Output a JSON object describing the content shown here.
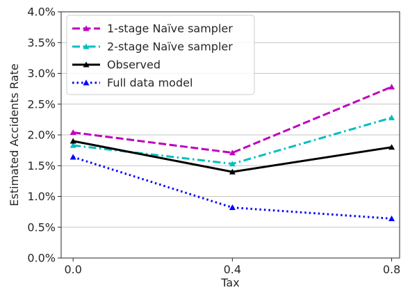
{
  "chart_data": {
    "type": "line",
    "xlabel": "Tax",
    "ylabel": "Estimated Accidents Rate",
    "x": [
      0.0,
      0.4,
      0.8
    ],
    "x_tick_labels": [
      "0.0",
      "0.4",
      "0.8"
    ],
    "xlim": [
      -0.03,
      0.82
    ],
    "ylim": [
      0.0,
      4.0
    ],
    "y_ticks": [
      0.0,
      0.5,
      1.0,
      1.5,
      2.0,
      2.5,
      3.0,
      3.5,
      4.0
    ],
    "y_tick_labels": [
      "0.0%",
      "0.5%",
      "1.0%",
      "1.5%",
      "2.0%",
      "2.5%",
      "3.0%",
      "3.5%",
      "4.0%"
    ],
    "y_grid": true,
    "legend_position": "top-left",
    "series": [
      {
        "name": "1-stage Naïve sampler",
        "values": [
          2.04,
          1.71,
          2.78
        ],
        "color": "#bf00bf",
        "dash": "dashed",
        "marker": "triangle"
      },
      {
        "name": "2-stage Naïve sampler",
        "values": [
          1.83,
          1.53,
          2.28
        ],
        "color": "#00bfbf",
        "dash": "dashdot",
        "marker": "triangle"
      },
      {
        "name": "Observed",
        "values": [
          1.9,
          1.4,
          1.8
        ],
        "color": "#000000",
        "dash": "solid",
        "marker": "triangle"
      },
      {
        "name": "Full data model",
        "values": [
          1.64,
          0.82,
          0.64
        ],
        "color": "#0000ff",
        "dash": "dotted",
        "marker": "triangle"
      }
    ]
  }
}
